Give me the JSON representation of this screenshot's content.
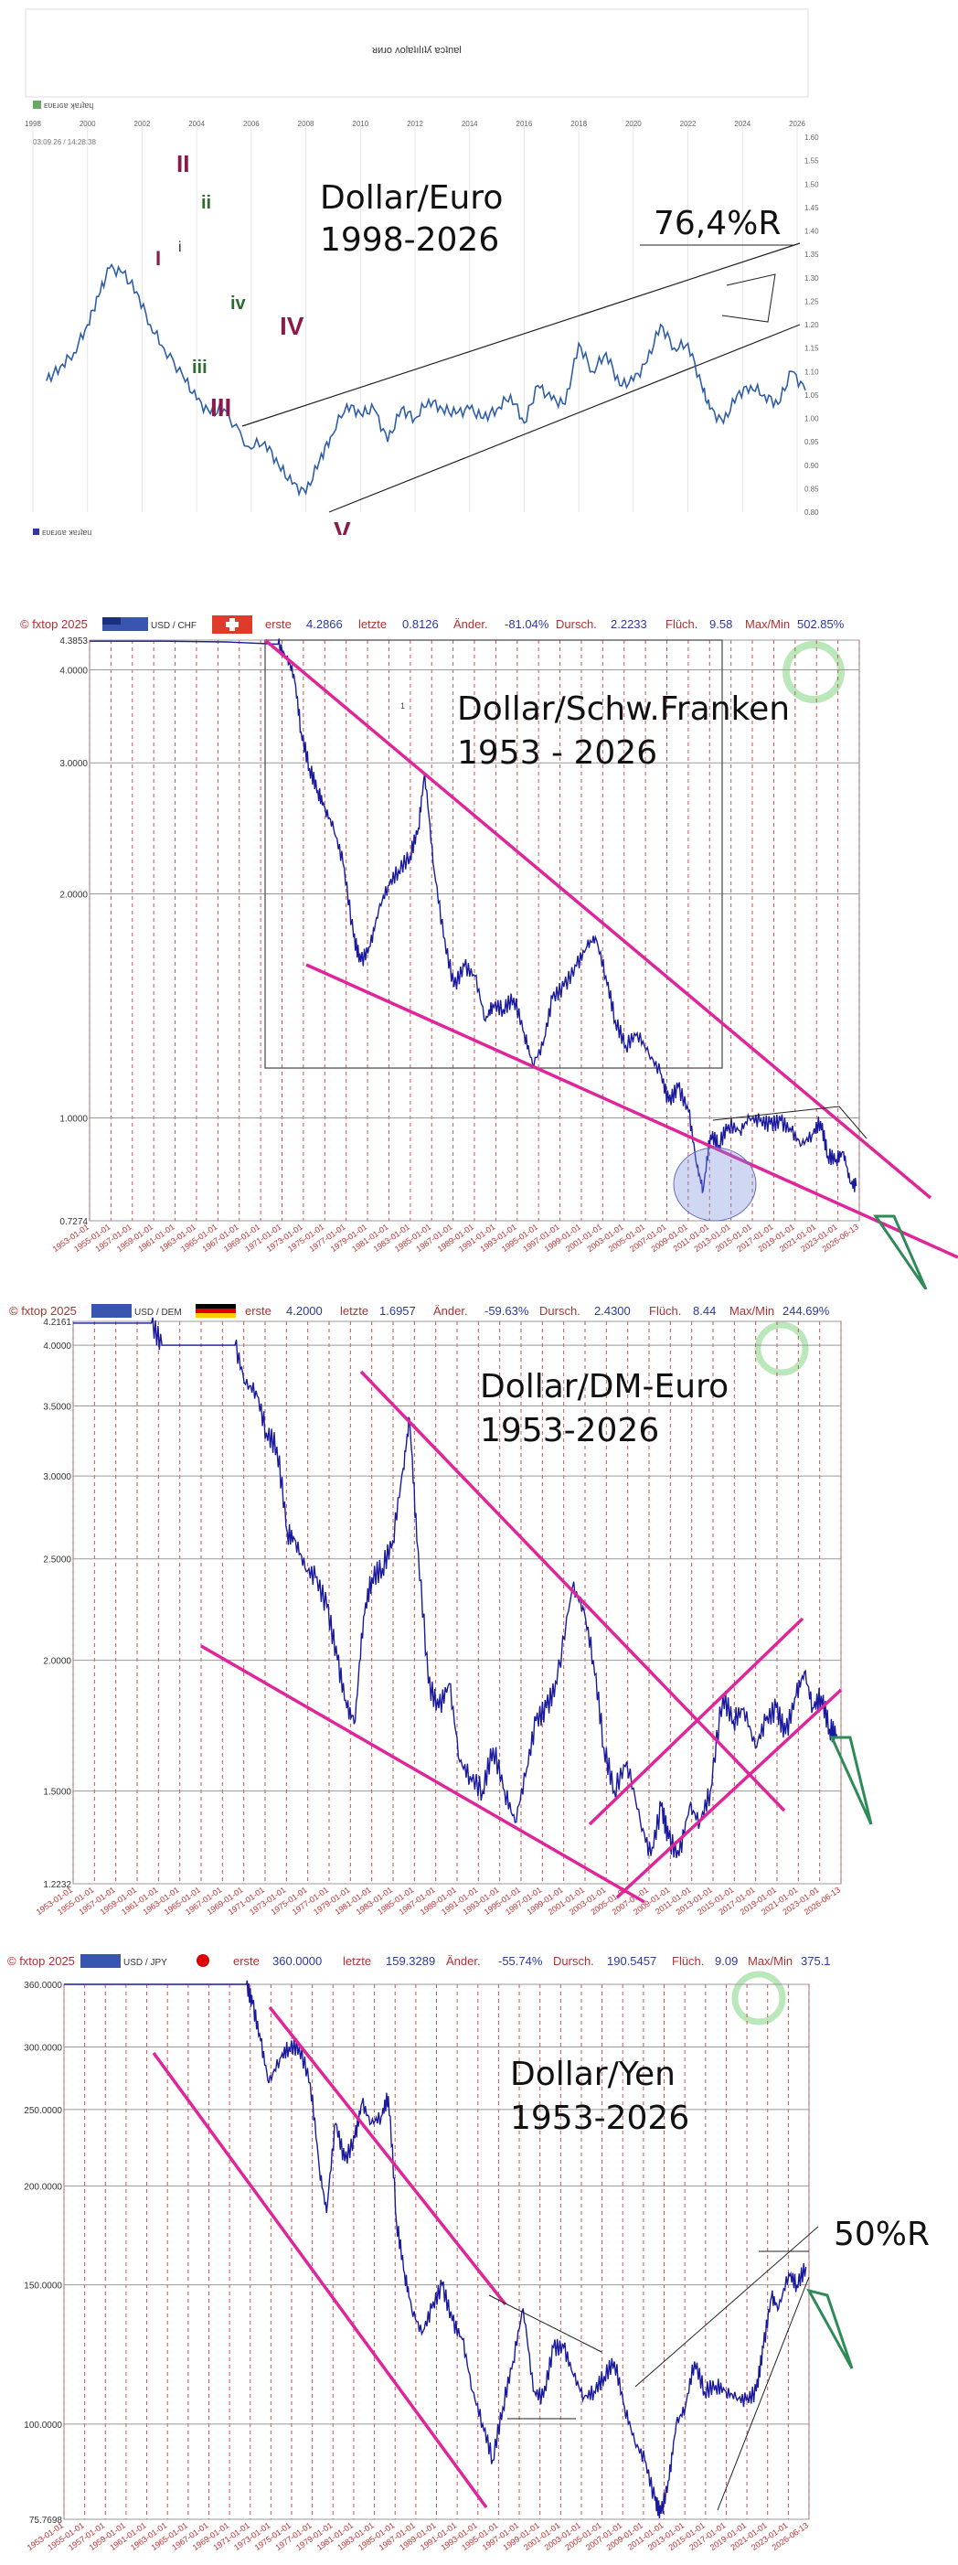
{
  "chart_data": [
    {
      "type": "line",
      "title": "Dollar/Euro",
      "subtitle": "1998-2026",
      "header_text": "ᴚᴎɹo ʌolɐʇılıʇʎ ɐɔʇnɐl",
      "legend_top": "ᴇᴜᴇɹɢɐ ʞɐɹʇɐɥ",
      "legend_bottom": "ᴇᴜᴇɹɢɐ ʞɐɹʇɐɥ",
      "date_stamp": "03.09.26 / 14:28:38",
      "annotation": "76,4%R",
      "wave_labels": [
        "I",
        "II",
        "i",
        "ii",
        "iii",
        "III",
        "iv",
        "IV",
        "V"
      ],
      "x_ticks": [
        "1998",
        "2000",
        "2002",
        "2004",
        "2006",
        "2008",
        "2010",
        "2012",
        "2014",
        "2016",
        "2018",
        "2020",
        "2022",
        "2024",
        "2026"
      ],
      "y_ticks": [
        "0.80",
        "0.85",
        "0.90",
        "0.95",
        "1.00",
        "1.05",
        "1.10",
        "1.15",
        "1.20",
        "1.25",
        "1.30",
        "1.35",
        "1.40",
        "1.45",
        "1.50",
        "1.55",
        "1.60"
      ],
      "ylim": [
        0.82,
        1.62
      ],
      "series": [
        {
          "values_x": [
            1998.5,
            1999.0,
            1999.5,
            2000.0,
            2000.4,
            2000.8,
            2001.3,
            2001.8,
            2002.3,
            2002.8,
            2003.5,
            2004.0,
            2004.5,
            2005.0,
            2005.9,
            2006.5,
            2007.0,
            2007.5,
            2008.0,
            2008.5,
            2008.9,
            2009.5,
            2010.0,
            2010.5,
            2011.0,
            2011.5,
            2012.0,
            2012.5,
            2013.0,
            2013.5,
            2014.0,
            2014.5,
            2015.0,
            2015.5,
            2016.0,
            2016.5,
            2017.0,
            2017.5,
            2018.0,
            2018.5,
            2019.0,
            2019.5,
            2020.0,
            2020.5,
            2021.0,
            2021.5,
            2022.0,
            2022.5,
            2022.8,
            2023.3,
            2023.8,
            2024.3,
            2024.8,
            2025.3,
            2025.8,
            2026.3
          ],
          "values_y": [
            1.1,
            1.13,
            1.16,
            1.22,
            1.28,
            1.34,
            1.33,
            1.29,
            1.22,
            1.17,
            1.11,
            1.06,
            1.03,
            1.04,
            0.96,
            0.97,
            0.92,
            0.88,
            0.86,
            0.93,
            0.98,
            1.05,
            1.03,
            1.04,
            0.97,
            1.04,
            1.02,
            1.06,
            1.04,
            1.03,
            1.04,
            1.02,
            1.04,
            1.07,
            1.01,
            1.09,
            1.06,
            1.05,
            1.18,
            1.12,
            1.16,
            1.09,
            1.1,
            1.14,
            1.22,
            1.17,
            1.18,
            1.09,
            1.04,
            1.01,
            1.07,
            1.09,
            1.07,
            1.05,
            1.12,
            1.08
          ]
        }
      ]
    },
    {
      "type": "line",
      "title": "Dollar/Schw.Franken",
      "subtitle": "1953 - 2026",
      "header": {
        "copyright": "© fxtop 2025",
        "pair": "USD / CHF",
        "first_label": "erste",
        "first_value": "4.2866",
        "last_label": "letzte",
        "last_value": "0.8126",
        "change_label": "Änder.",
        "change_value": "-81.04%",
        "avg_label": "Dursch.",
        "avg_value": "2.2233",
        "vol_label": "Flüch.",
        "vol_value": "9.58",
        "maxmin_label": "Max/Min",
        "maxmin_value": "502.85%"
      },
      "y_ticks": [
        "4.3853",
        "4.0000",
        "3.0000",
        "2.0000",
        "1.0000",
        "0.7274"
      ],
      "ylim": [
        0.7274,
        4.3853
      ],
      "y_scale": "log",
      "box_mark": "1",
      "x_ticks": [
        "1953-01-01",
        "1955-01-01",
        "1957-01-01",
        "1959-01-01",
        "1961-01-01",
        "1963-01-01",
        "1965-01-01",
        "1967-01-01",
        "1969-01-01",
        "1971-01-01",
        "1973-01-01",
        "1975-01-01",
        "1977-01-01",
        "1979-01-01",
        "1981-01-01",
        "1983-01-01",
        "1985-01-01",
        "1987-01-01",
        "1989-01-01",
        "1991-01-01",
        "1993-01-01",
        "1995-01-01",
        "1997-01-01",
        "1999-01-01",
        "2001-01-01",
        "2003-01-01",
        "2005-01-01",
        "2007-01-01",
        "2009-01-01",
        "2011-01-01",
        "2013-01-01",
        "2015-01-01",
        "2017-01-01",
        "2019-01-01",
        "2021-01-01",
        "2023-01-01",
        "2026-06-13"
      ],
      "series": [
        {
          "values_x": [
            1953.0,
            1960.0,
            1966.0,
            1971.0,
            1971.8,
            1972.5,
            1973.2,
            1974.0,
            1974.8,
            1975.5,
            1976.3,
            1977.2,
            1978.2,
            1978.9,
            1979.8,
            1980.6,
            1981.5,
            1982.5,
            1983.6,
            1984.4,
            1985.0,
            1985.8,
            1986.8,
            1987.8,
            1988.8,
            1989.8,
            1990.8,
            1991.5,
            1992.5,
            1993.5,
            1994.5,
            1995.3,
            1996.3,
            1997.2,
            1998.3,
            1999.5,
            2000.5,
            2001.3,
            2002.3,
            2003.2,
            2004.2,
            2005.3,
            2006.4,
            2007.5,
            2008.3,
            2009.2,
            2010.2,
            2011.0,
            2011.6,
            2012.3,
            2013.1,
            2014.0,
            2015.1,
            2016.0,
            2017.0,
            2018.0,
            2019.0,
            2020.0,
            2021.0,
            2022.0,
            2022.8,
            2023.5,
            2024.3,
            2025.0,
            2025.6,
            2026.2
          ],
          "values_y": [
            4.37,
            4.37,
            4.36,
            4.33,
            4.15,
            3.95,
            3.3,
            2.95,
            2.75,
            2.6,
            2.45,
            2.2,
            1.75,
            1.62,
            1.7,
            1.9,
            2.05,
            2.15,
            2.25,
            2.45,
            2.9,
            2.2,
            1.75,
            1.5,
            1.6,
            1.55,
            1.35,
            1.42,
            1.4,
            1.45,
            1.3,
            1.18,
            1.25,
            1.45,
            1.5,
            1.6,
            1.7,
            1.75,
            1.55,
            1.35,
            1.25,
            1.3,
            1.22,
            1.15,
            1.05,
            1.1,
            1.02,
            0.86,
            0.8,
            0.95,
            0.92,
            0.98,
            0.96,
            1.0,
            0.99,
            0.98,
            0.99,
            0.96,
            0.92,
            0.95,
            0.99,
            0.89,
            0.88,
            0.9,
            0.82,
            0.81
          ]
        }
      ]
    },
    {
      "type": "line",
      "title": "Dollar/DM-Euro",
      "subtitle": "1953-2026",
      "header": {
        "copyright": "© fxtop 2025",
        "pair": "USD / DEM",
        "first_label": "erste",
        "first_value": "4.2000",
        "last_label": "letzte",
        "last_value": "1.6957",
        "change_label": "Änder.",
        "change_value": "-59.63%",
        "avg_label": "Dursch.",
        "avg_value": "2.4300",
        "vol_label": "Flüch.",
        "vol_value": "8.44",
        "maxmin_label": "Max/Min",
        "maxmin_value": "244.69%"
      },
      "y_ticks": [
        "4.2161",
        "4.0000",
        "3.5000",
        "3.0000",
        "2.5000",
        "2.0000",
        "1.5000",
        "1.2232"
      ],
      "ylim": [
        1.2232,
        4.2161
      ],
      "y_scale": "log",
      "x_ticks": [
        "1953-01-01",
        "1955-01-01",
        "1957-01-01",
        "1959-01-01",
        "1961-01-01",
        "1963-01-01",
        "1965-01-01",
        "1967-01-01",
        "1969-01-01",
        "1971-01-01",
        "1973-01-01",
        "1975-01-01",
        "1977-01-01",
        "1979-01-01",
        "1981-01-01",
        "1983-01-01",
        "1985-01-01",
        "1987-01-01",
        "1989-01-01",
        "1991-01-01",
        "1993-01-01",
        "1995-01-01",
        "1997-01-01",
        "1999-01-01",
        "2001-01-01",
        "2003-01-01",
        "2005-01-01",
        "2007-01-01",
        "2009-01-01",
        "2011-01-01",
        "2013-01-01",
        "2015-01-01",
        "2017-01-01",
        "2019-01-01",
        "2021-01-01",
        "2023-01-01",
        "2026-06-13"
      ],
      "series": [
        {
          "values_x": [
            1953.0,
            1960.5,
            1961.5,
            1968.5,
            1969.5,
            1970.5,
            1971.5,
            1972.5,
            1973.5,
            1974.3,
            1975.2,
            1976.2,
            1977.3,
            1978.3,
            1979.2,
            1980.0,
            1980.8,
            1981.6,
            1982.6,
            1983.6,
            1984.6,
            1985.2,
            1985.9,
            1987.0,
            1988.0,
            1989.0,
            1990.0,
            1991.0,
            1992.2,
            1993.2,
            1994.3,
            1995.3,
            1996.3,
            1997.3,
            1998.3,
            1999.3,
            2000.8,
            2001.8,
            2002.8,
            2003.8,
            2004.8,
            2006.0,
            2007.3,
            2008.3,
            2009.3,
            2010.0,
            2011.0,
            2012.0,
            2013.0,
            2014.0,
            2015.2,
            2016.2,
            2017.2,
            2018.3,
            2019.3,
            2020.3,
            2021.2,
            2022.2,
            2023.0,
            2023.8,
            2024.6,
            2025.4,
            2026.1
          ],
          "values_y": [
            4.2,
            4.2,
            4.0,
            4.0,
            3.67,
            3.62,
            3.3,
            3.2,
            2.65,
            2.6,
            2.45,
            2.4,
            2.25,
            2.0,
            1.8,
            1.75,
            2.2,
            2.4,
            2.45,
            2.6,
            3.05,
            3.4,
            2.6,
            1.9,
            1.8,
            1.9,
            1.6,
            1.55,
            1.5,
            1.65,
            1.5,
            1.4,
            1.55,
            1.75,
            1.8,
            1.9,
            2.35,
            2.25,
            2.0,
            1.65,
            1.5,
            1.6,
            1.4,
            1.3,
            1.45,
            1.35,
            1.3,
            1.45,
            1.4,
            1.5,
            1.85,
            1.75,
            1.8,
            1.65,
            1.75,
            1.8,
            1.7,
            1.85,
            1.95,
            1.8,
            1.85,
            1.72,
            1.7
          ]
        }
      ]
    },
    {
      "type": "line",
      "title": "Dollar/Yen",
      "subtitle": "1953-2026",
      "annotation": "50%R",
      "header": {
        "copyright": "© fxtop 2025",
        "pair": "USD / JPY",
        "first_label": "erste",
        "first_value": "360.0000",
        "last_label": "letzte",
        "last_value": "159.3289",
        "change_label": "Änder.",
        "change_value": "-55.74%",
        "avg_label": "Dursch.",
        "avg_value": "190.5457",
        "vol_label": "Flüch.",
        "vol_value": "9.09",
        "maxmin_label": "Max/Min",
        "maxmin_value": "375.1"
      },
      "y_ticks": [
        "360.0000",
        "300.0000",
        "250.0000",
        "200.0000",
        "150.0000",
        "100.0000",
        "75.7698"
      ],
      "ylim": [
        75.7698,
        360.0
      ],
      "y_scale": "log",
      "x_ticks": [
        "1953-01-01",
        "1955-01-01",
        "1957-01-01",
        "1959-01-01",
        "1961-01-01",
        "1963-01-01",
        "1965-01-01",
        "1967-01-01",
        "1969-01-01",
        "1971-01-01",
        "1973-01-01",
        "1975-01-01",
        "1977-01-01",
        "1979-01-01",
        "1981-01-01",
        "1983-01-01",
        "1985-01-01",
        "1987-01-01",
        "1989-01-01",
        "1991-01-01",
        "1993-01-01",
        "1995-01-01",
        "1997-01-01",
        "1999-01-01",
        "2001-01-01",
        "2003-01-01",
        "2005-01-01",
        "2007-01-01",
        "2009-01-01",
        "2011-01-01",
        "2013-01-01",
        "2015-01-01",
        "2017-01-01",
        "2019-01-01",
        "2021-01-01",
        "2023-01-01",
        "2026-06-13"
      ],
      "series": [
        {
          "values_x": [
            1953.0,
            1971.0,
            1971.6,
            1972.4,
            1973.2,
            1974.3,
            1975.2,
            1976.2,
            1977.3,
            1978.2,
            1978.9,
            1979.8,
            1980.7,
            1981.7,
            1982.4,
            1983.3,
            1984.3,
            1985.0,
            1985.8,
            1986.6,
            1987.3,
            1988.3,
            1989.3,
            1990.3,
            1991.3,
            1992.3,
            1993.3,
            1994.3,
            1995.3,
            1996.3,
            1997.3,
            1998.3,
            1999.3,
            2000.3,
            2001.3,
            2002.3,
            2003.3,
            2004.3,
            2005.3,
            2006.3,
            2007.3,
            2008.3,
            2009.3,
            2010.3,
            2011.3,
            2011.9,
            2012.7,
            2013.4,
            2014.3,
            2015.2,
            2016.2,
            2017.3,
            2018.3,
            2019.3,
            2020.3,
            2021.3,
            2022.0,
            2022.8,
            2023.5,
            2024.5,
            2025.3,
            2026.2
          ],
          "values_y": [
            360,
            360,
            340,
            305,
            270,
            290,
            300,
            300,
            270,
            210,
            185,
            240,
            215,
            230,
            255,
            240,
            245,
            260,
            180,
            155,
            140,
            130,
            140,
            150,
            135,
            128,
            110,
            100,
            90,
            105,
            120,
            140,
            110,
            108,
            125,
            125,
            115,
            108,
            110,
            115,
            120,
            105,
            95,
            90,
            80,
            77,
            85,
            100,
            105,
            120,
            110,
            112,
            110,
            108,
            107,
            110,
            125,
            145,
            140,
            155,
            150,
            158
          ]
        }
      ]
    }
  ]
}
